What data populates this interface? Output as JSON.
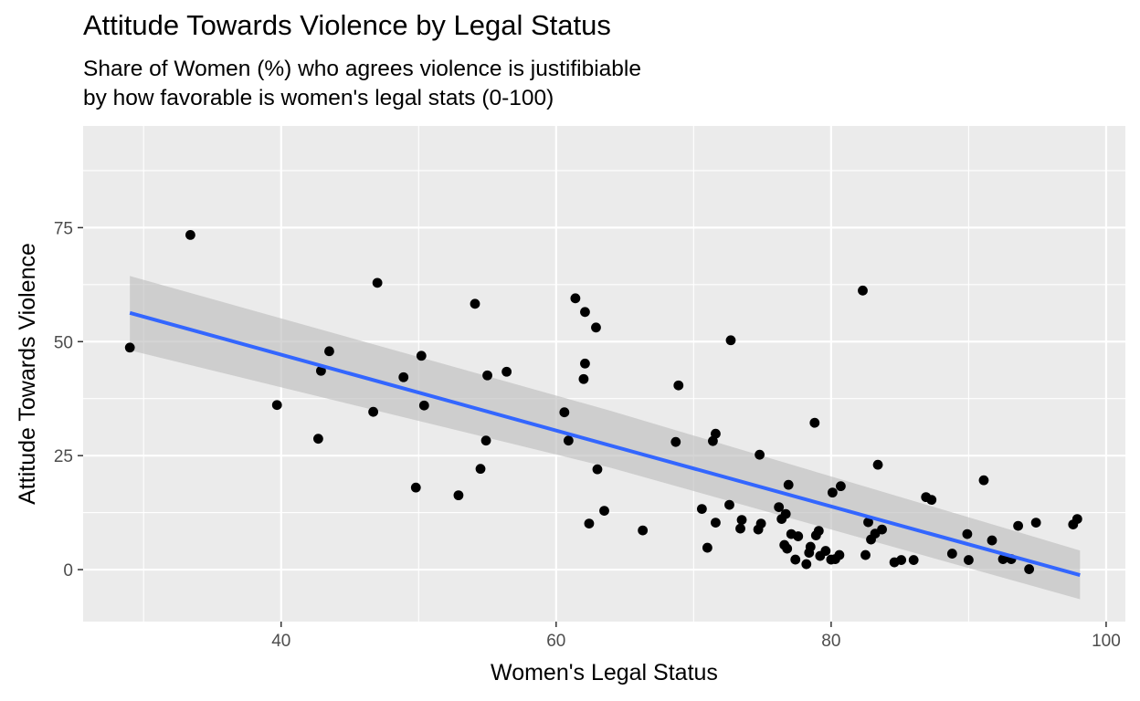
{
  "chart_data": {
    "type": "scatter",
    "title": "Attitude Towards Violence by Legal Status",
    "subtitle_lines": [
      "Share of Women (%) who agrees violence is justifibiable",
      "by how favorable is women's legal stats (0-100)"
    ],
    "xlabel": "Women's Legal Status",
    "ylabel": "Attitude Towards Violence",
    "xlim": [
      25.6,
      101.4
    ],
    "ylim": [
      -11.4,
      97.3
    ],
    "x_ticks": [
      40,
      60,
      80,
      100
    ],
    "y_ticks": [
      0,
      25,
      50,
      75
    ],
    "grid": true,
    "background": "#ebebeb",
    "point_color": "#000000",
    "fit_color": "#3366ff",
    "band_color": "#bebebe",
    "fit_line": {
      "method": "linear",
      "x": [
        29.0,
        98.1
      ],
      "y": [
        56.3,
        -1.2
      ]
    },
    "confidence_band": {
      "x": [
        29.0,
        64.0,
        98.1
      ],
      "upper": [
        64.4,
        34.8,
        4.2
      ],
      "lower": [
        48.1,
        22.3,
        -6.5
      ]
    },
    "points": [
      {
        "x": 29.0,
        "y": 48.7
      },
      {
        "x": 33.4,
        "y": 73.4
      },
      {
        "x": 39.7,
        "y": 36.1
      },
      {
        "x": 42.7,
        "y": 28.7
      },
      {
        "x": 42.9,
        "y": 43.6
      },
      {
        "x": 43.5,
        "y": 47.9
      },
      {
        "x": 46.7,
        "y": 34.6
      },
      {
        "x": 47.0,
        "y": 62.9
      },
      {
        "x": 48.9,
        "y": 42.2
      },
      {
        "x": 49.8,
        "y": 18.0
      },
      {
        "x": 50.2,
        "y": 46.9
      },
      {
        "x": 50.4,
        "y": 36.0
      },
      {
        "x": 52.9,
        "y": 16.3
      },
      {
        "x": 54.1,
        "y": 58.3
      },
      {
        "x": 54.5,
        "y": 22.1
      },
      {
        "x": 54.9,
        "y": 28.3
      },
      {
        "x": 55.0,
        "y": 42.6
      },
      {
        "x": 56.4,
        "y": 43.4
      },
      {
        "x": 60.6,
        "y": 34.5
      },
      {
        "x": 60.9,
        "y": 28.3
      },
      {
        "x": 61.4,
        "y": 59.5
      },
      {
        "x": 62.0,
        "y": 41.8
      },
      {
        "x": 62.1,
        "y": 45.2
      },
      {
        "x": 62.1,
        "y": 56.5
      },
      {
        "x": 62.4,
        "y": 10.1
      },
      {
        "x": 62.9,
        "y": 53.1
      },
      {
        "x": 63.0,
        "y": 22.0
      },
      {
        "x": 63.5,
        "y": 12.9
      },
      {
        "x": 66.3,
        "y": 8.6
      },
      {
        "x": 68.7,
        "y": 28.0
      },
      {
        "x": 68.9,
        "y": 40.4
      },
      {
        "x": 70.6,
        "y": 13.3
      },
      {
        "x": 71.0,
        "y": 4.8
      },
      {
        "x": 71.4,
        "y": 28.2
      },
      {
        "x": 71.6,
        "y": 29.8
      },
      {
        "x": 71.6,
        "y": 10.3
      },
      {
        "x": 72.6,
        "y": 14.2
      },
      {
        "x": 72.7,
        "y": 50.3
      },
      {
        "x": 73.4,
        "y": 9.0
      },
      {
        "x": 73.5,
        "y": 10.9
      },
      {
        "x": 74.7,
        "y": 8.8
      },
      {
        "x": 74.8,
        "y": 25.2
      },
      {
        "x": 74.9,
        "y": 10.1
      },
      {
        "x": 76.2,
        "y": 13.7
      },
      {
        "x": 76.4,
        "y": 11.1
      },
      {
        "x": 76.6,
        "y": 5.4
      },
      {
        "x": 76.7,
        "y": 12.2
      },
      {
        "x": 76.8,
        "y": 4.6
      },
      {
        "x": 76.9,
        "y": 18.6
      },
      {
        "x": 77.1,
        "y": 7.8
      },
      {
        "x": 77.4,
        "y": 2.2
      },
      {
        "x": 77.6,
        "y": 7.3
      },
      {
        "x": 78.2,
        "y": 1.2
      },
      {
        "x": 78.4,
        "y": 3.7
      },
      {
        "x": 78.5,
        "y": 5.0
      },
      {
        "x": 78.8,
        "y": 32.2
      },
      {
        "x": 78.9,
        "y": 7.5
      },
      {
        "x": 79.1,
        "y": 8.5
      },
      {
        "x": 79.2,
        "y": 3.0
      },
      {
        "x": 79.6,
        "y": 4.1
      },
      {
        "x": 80.0,
        "y": 2.2
      },
      {
        "x": 80.1,
        "y": 16.9
      },
      {
        "x": 80.3,
        "y": 2.3
      },
      {
        "x": 80.6,
        "y": 3.2
      },
      {
        "x": 80.7,
        "y": 18.3
      },
      {
        "x": 82.3,
        "y": 61.2
      },
      {
        "x": 82.5,
        "y": 3.2
      },
      {
        "x": 82.7,
        "y": 10.4
      },
      {
        "x": 82.9,
        "y": 6.6
      },
      {
        "x": 83.2,
        "y": 7.9
      },
      {
        "x": 83.4,
        "y": 23.0
      },
      {
        "x": 83.7,
        "y": 8.8
      },
      {
        "x": 84.6,
        "y": 1.6
      },
      {
        "x": 85.1,
        "y": 2.1
      },
      {
        "x": 86.0,
        "y": 2.1
      },
      {
        "x": 86.9,
        "y": 15.9
      },
      {
        "x": 87.3,
        "y": 15.3
      },
      {
        "x": 88.8,
        "y": 3.5
      },
      {
        "x": 89.9,
        "y": 7.8
      },
      {
        "x": 90.0,
        "y": 2.1
      },
      {
        "x": 91.1,
        "y": 19.6
      },
      {
        "x": 91.7,
        "y": 6.4
      },
      {
        "x": 92.5,
        "y": 2.3
      },
      {
        "x": 93.1,
        "y": 2.3
      },
      {
        "x": 93.6,
        "y": 9.6
      },
      {
        "x": 94.4,
        "y": 0.1
      },
      {
        "x": 94.9,
        "y": 10.3
      },
      {
        "x": 97.6,
        "y": 9.9
      },
      {
        "x": 97.9,
        "y": 11.1
      }
    ]
  }
}
